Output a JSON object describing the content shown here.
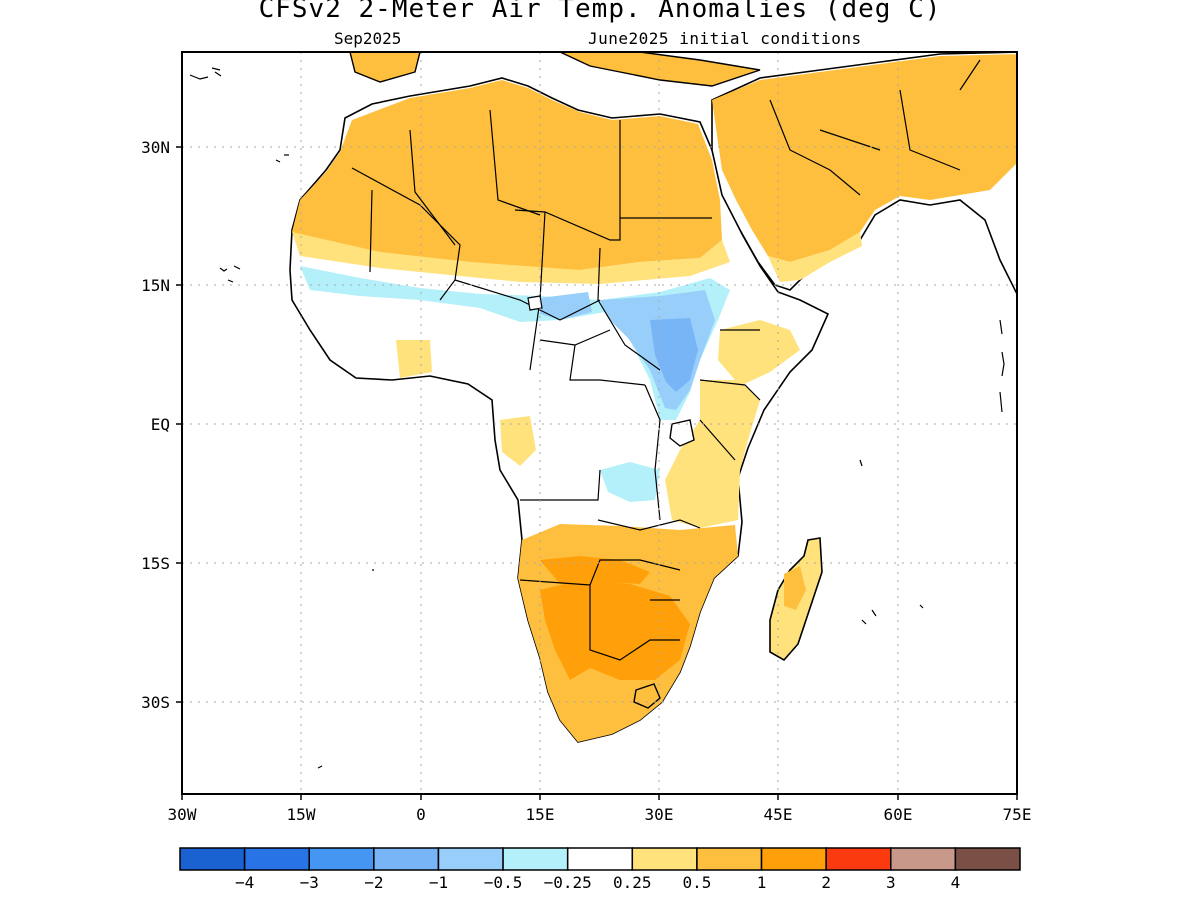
{
  "title": "CFSv2 2-Meter Air Temp. Anomalies (deg C)",
  "subtitle_left": "Sep2025",
  "subtitle_right": "June2025 initial conditions",
  "lat_ticks": [
    "30N",
    "15N",
    "EQ",
    "15S",
    "30S"
  ],
  "lon_ticks": [
    "30W",
    "15W",
    "0",
    "15E",
    "30E",
    "45E",
    "60E",
    "75E"
  ],
  "colorbar": {
    "colors": [
      "#1a62d2",
      "#2873e6",
      "#4596f2",
      "#78b5f7",
      "#98cefa",
      "#b3f0fa",
      "#ffffff",
      "#ffe27c",
      "#ffbf3e",
      "#ffa00a",
      "#fb3a0f",
      "#c8998a",
      "#7a4f45"
    ],
    "labels": [
      "-4",
      "-3",
      "-2",
      "-1",
      "-0.5",
      "-0.25",
      "0.25",
      "0.5",
      "1",
      "2",
      "3",
      "4"
    ]
  },
  "chart_data": {
    "type": "heatmap",
    "title": "CFSv2 2-Meter Air Temp. Anomalies (deg C)",
    "valid_month": "Sep2025",
    "initial_conditions": "June2025 initial conditions",
    "lon_range": [
      -30,
      75
    ],
    "lat_range": [
      -41,
      40
    ],
    "color_levels": [
      -4,
      -3,
      -2,
      -1,
      -0.5,
      -0.25,
      0.25,
      0.5,
      1,
      2,
      3,
      4
    ],
    "regions": [
      {
        "area": "Sahara / North Africa",
        "anomaly_range": [
          0.5,
          1
        ]
      },
      {
        "area": "Arabian Peninsula",
        "anomaly_range": [
          0.5,
          1
        ]
      },
      {
        "area": "Sahel belt",
        "anomaly_range": [
          -1,
          -0.25
        ]
      },
      {
        "area": "South Sudan / Uganda",
        "anomaly_range": [
          -2,
          -0.5
        ]
      },
      {
        "area": "Southern Africa (Angola, Zambia, Botswana)",
        "anomaly_range": [
          1,
          2
        ]
      },
      {
        "area": "South Africa",
        "anomaly_range": [
          0.5,
          1
        ]
      },
      {
        "area": "Madagascar",
        "anomaly_range": [
          0.25,
          1
        ]
      },
      {
        "area": "Kenya / Tanzania coast",
        "anomaly_range": [
          0.25,
          0.5
        ]
      }
    ]
  }
}
